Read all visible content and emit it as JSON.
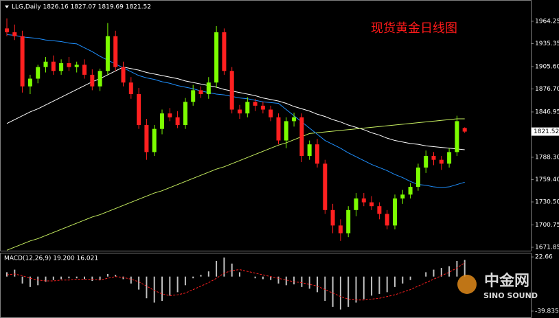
{
  "chart_data": [
    {
      "type": "candlestick",
      "title": "现货黄金日线图",
      "header": "LLG,Daily  1826.16 1827.07 1819.69 1821.52",
      "current_price": 1821.52,
      "ylim": [
        1667.4,
        1990.0
      ],
      "yticks": [
        1964.25,
        1935.35,
        {
          "value": 1905.6,
          "label": "1905.60"
        },
        {
          "value": 1876.7,
          "label": "1876.70"
        },
        1846.95,
        {
          "value": 1788.3,
          "label": "1788.30"
        },
        {
          "value": 1759.4,
          "label": "1759.40"
        },
        {
          "value": 1730.5,
          "label": "1730.50"
        },
        1700.75,
        1671.85
      ],
      "up_color": "#7cfc00",
      "down_color": "#ff2020",
      "open": [
        1955,
        1950,
        1945,
        1880,
        1890,
        1905,
        1912,
        1900,
        1910,
        1905,
        1908,
        1895,
        1880,
        1900,
        1945,
        1905,
        1885,
        1870,
        1830,
        1795,
        1825,
        1845,
        1840,
        1830,
        1860,
        1875,
        1870,
        1885,
        1950,
        1900,
        1850,
        1845,
        1860,
        1855,
        1850,
        1840,
        1810,
        1835,
        1840,
        1790,
        1805,
        1780,
        1720,
        1700,
        1690,
        1720,
        1735,
        1730,
        1725,
        1715,
        1700,
        1735,
        1740,
        1750,
        1775,
        1790,
        1785,
        1780,
        1795,
        1826.16
      ],
      "high": [
        1968,
        1960,
        1952,
        1895,
        1908,
        1918,
        1920,
        1915,
        1918,
        1912,
        1915,
        1902,
        1903,
        1962,
        1952,
        1912,
        1892,
        1878,
        1838,
        1830,
        1850,
        1852,
        1848,
        1865,
        1882,
        1880,
        1892,
        1958,
        1955,
        1905,
        1856,
        1866,
        1864,
        1860,
        1855,
        1845,
        1840,
        1846,
        1845,
        1810,
        1812,
        1785,
        1728,
        1708,
        1725,
        1742,
        1742,
        1738,
        1730,
        1720,
        1740,
        1746,
        1755,
        1780,
        1797,
        1795,
        1790,
        1800,
        1842,
        1827.07
      ],
      "low": [
        1945,
        1940,
        1872,
        1870,
        1884,
        1898,
        1895,
        1895,
        1900,
        1898,
        1890,
        1875,
        1874,
        1895,
        1900,
        1880,
        1864,
        1825,
        1785,
        1790,
        1818,
        1835,
        1826,
        1825,
        1855,
        1865,
        1864,
        1878,
        1895,
        1845,
        1838,
        1840,
        1848,
        1845,
        1835,
        1805,
        1800,
        1828,
        1782,
        1785,
        1775,
        1715,
        1690,
        1680,
        1685,
        1712,
        1725,
        1720,
        1708,
        1695,
        1695,
        1728,
        1735,
        1745,
        1768,
        1778,
        1772,
        1775,
        1790,
        1819.69
      ],
      "close": [
        1950,
        1945,
        1880,
        1890,
        1905,
        1912,
        1900,
        1910,
        1905,
        1908,
        1895,
        1880,
        1900,
        1945,
        1905,
        1885,
        1870,
        1830,
        1795,
        1825,
        1845,
        1840,
        1830,
        1860,
        1875,
        1870,
        1885,
        1950,
        1900,
        1850,
        1845,
        1860,
        1855,
        1850,
        1840,
        1810,
        1835,
        1840,
        1790,
        1805,
        1780,
        1720,
        1700,
        1690,
        1720,
        1735,
        1730,
        1725,
        1715,
        1700,
        1735,
        1740,
        1750,
        1775,
        1790,
        1785,
        1780,
        1795,
        1835,
        1821.52
      ],
      "series": [
        {
          "color": "#ffffff",
          "values": [
            1832,
            1837,
            1842,
            1847,
            1851,
            1856,
            1861,
            1866,
            1871,
            1876,
            1881,
            1886,
            1890,
            1895,
            1900,
            1905,
            1903,
            1901,
            1898,
            1896,
            1894,
            1892,
            1890,
            1887,
            1885,
            1883,
            1881,
            1879,
            1876,
            1874,
            1872,
            1870,
            1868,
            1865,
            1863,
            1861,
            1858,
            1854,
            1851,
            1848,
            1844,
            1841,
            1837,
            1834,
            1830,
            1827,
            1824,
            1820,
            1817,
            1813,
            1810,
            1808,
            1806,
            1805,
            1803,
            1802,
            1801,
            1800,
            1799,
            1798
          ]
        },
        {
          "color": "#c8f060",
          "values": [
            1668,
            1672,
            1676,
            1680,
            1683,
            1687,
            1691,
            1695,
            1699,
            1703,
            1707,
            1711,
            1714,
            1718,
            1722,
            1726,
            1730,
            1734,
            1738,
            1742,
            1745,
            1749,
            1753,
            1757,
            1761,
            1765,
            1769,
            1773,
            1776,
            1780,
            1784,
            1788,
            1792,
            1796,
            1800,
            1804,
            1807,
            1811,
            1815,
            1819,
            1820,
            1821,
            1822,
            1823,
            1824,
            1825,
            1826,
            1827,
            1828,
            1829,
            1830,
            1831,
            1832,
            1833,
            1834,
            1835,
            1836,
            1837,
            1838,
            1838
          ]
        },
        {
          "color": "#1e90ff",
          "values": [
            1947,
            1946,
            1944,
            1943,
            1942,
            1940,
            1939,
            1938,
            1936,
            1935,
            1930,
            1925,
            1919,
            1914,
            1909,
            1904,
            1899,
            1894,
            1891,
            1889,
            1886,
            1884,
            1881,
            1879,
            1877,
            1874,
            1872,
            1870,
            1869,
            1867,
            1865,
            1864,
            1862,
            1860,
            1859,
            1858,
            1850,
            1842,
            1834,
            1826,
            1818,
            1810,
            1805,
            1800,
            1794,
            1789,
            1784,
            1779,
            1775,
            1771,
            1766,
            1762,
            1757,
            1753,
            1752,
            1750,
            1749,
            1750,
            1753,
            1756
          ]
        }
      ]
    },
    {
      "type": "macd",
      "header": "MACD(12,26,9) 19.200 16.021",
      "ylim": [
        -47.0,
        26.7
      ],
      "yticks": [
        22.66,
        -39.835
      ],
      "histogram_color": "#c0c0c0",
      "signal_color": "#ff2020",
      "histogram": [
        5,
        8,
        -8,
        -12,
        -10,
        -6,
        -4,
        -3,
        -2,
        -2,
        -3,
        -5,
        -4,
        3,
        2,
        -3,
        -8,
        -15,
        -25,
        -30,
        -28,
        -22,
        -18,
        -10,
        -2,
        2,
        6,
        18,
        22,
        15,
        5,
        0,
        -2,
        -3,
        -4,
        -8,
        -10,
        -9,
        -12,
        -14,
        -18,
        -28,
        -35,
        -38,
        -35,
        -30,
        -26,
        -22,
        -20,
        -18,
        -12,
        -8,
        -4,
        0,
        5,
        8,
        10,
        12,
        18,
        19.2
      ],
      "signal": [
        2,
        3,
        1,
        -2,
        -4,
        -5,
        -5,
        -4,
        -4,
        -3,
        -3,
        -3,
        -4,
        -2,
        0,
        -1,
        -3,
        -6,
        -11,
        -16,
        -20,
        -22,
        -21,
        -19,
        -15,
        -11,
        -7,
        -2,
        4,
        7,
        8,
        6,
        4,
        2,
        0,
        -2,
        -4,
        -6,
        -7,
        -9,
        -11,
        -15,
        -19,
        -23,
        -26,
        -27,
        -27,
        -26,
        -25,
        -23,
        -21,
        -18,
        -15,
        -11,
        -7,
        -3,
        1,
        5,
        10,
        16.021
      ]
    }
  ],
  "watermark": {
    "name": "中金网",
    "sub": "SINO SOUND"
  }
}
